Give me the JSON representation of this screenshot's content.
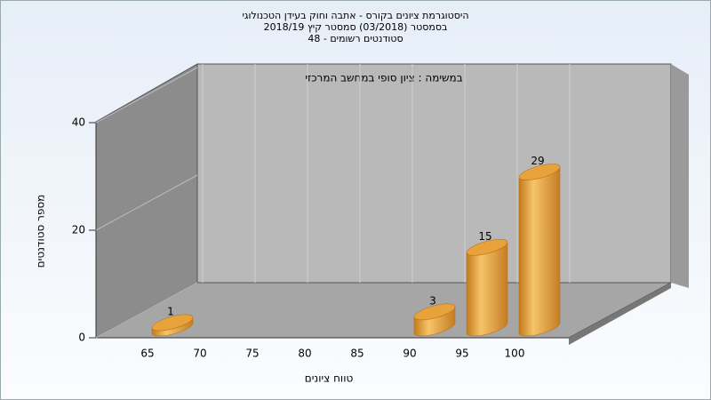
{
  "chart_data": {
    "type": "bar3d",
    "title": [
      "היסטוגרמת ציונים בקורס - אתבה וחוק בעידן הטכנולוגי",
      "בסמסטר  (03/2018)  סמסטר קיץ 2018/19",
      "סטודנטים רשומים - 48"
    ],
    "annotation": "במשימה : ציון סופי במחשב המרכזי",
    "x_label": "טווח ציונים",
    "y_label": "מספר סטודנטים",
    "categories": [
      "65",
      "70",
      "75",
      "80",
      "85",
      "90",
      "95",
      "100"
    ],
    "values": [
      1,
      0,
      0,
      0,
      0,
      3,
      15,
      29
    ],
    "color": "#e8a23c",
    "ylim": [
      0,
      40
    ],
    "yticks": [
      0,
      20,
      40
    ]
  }
}
